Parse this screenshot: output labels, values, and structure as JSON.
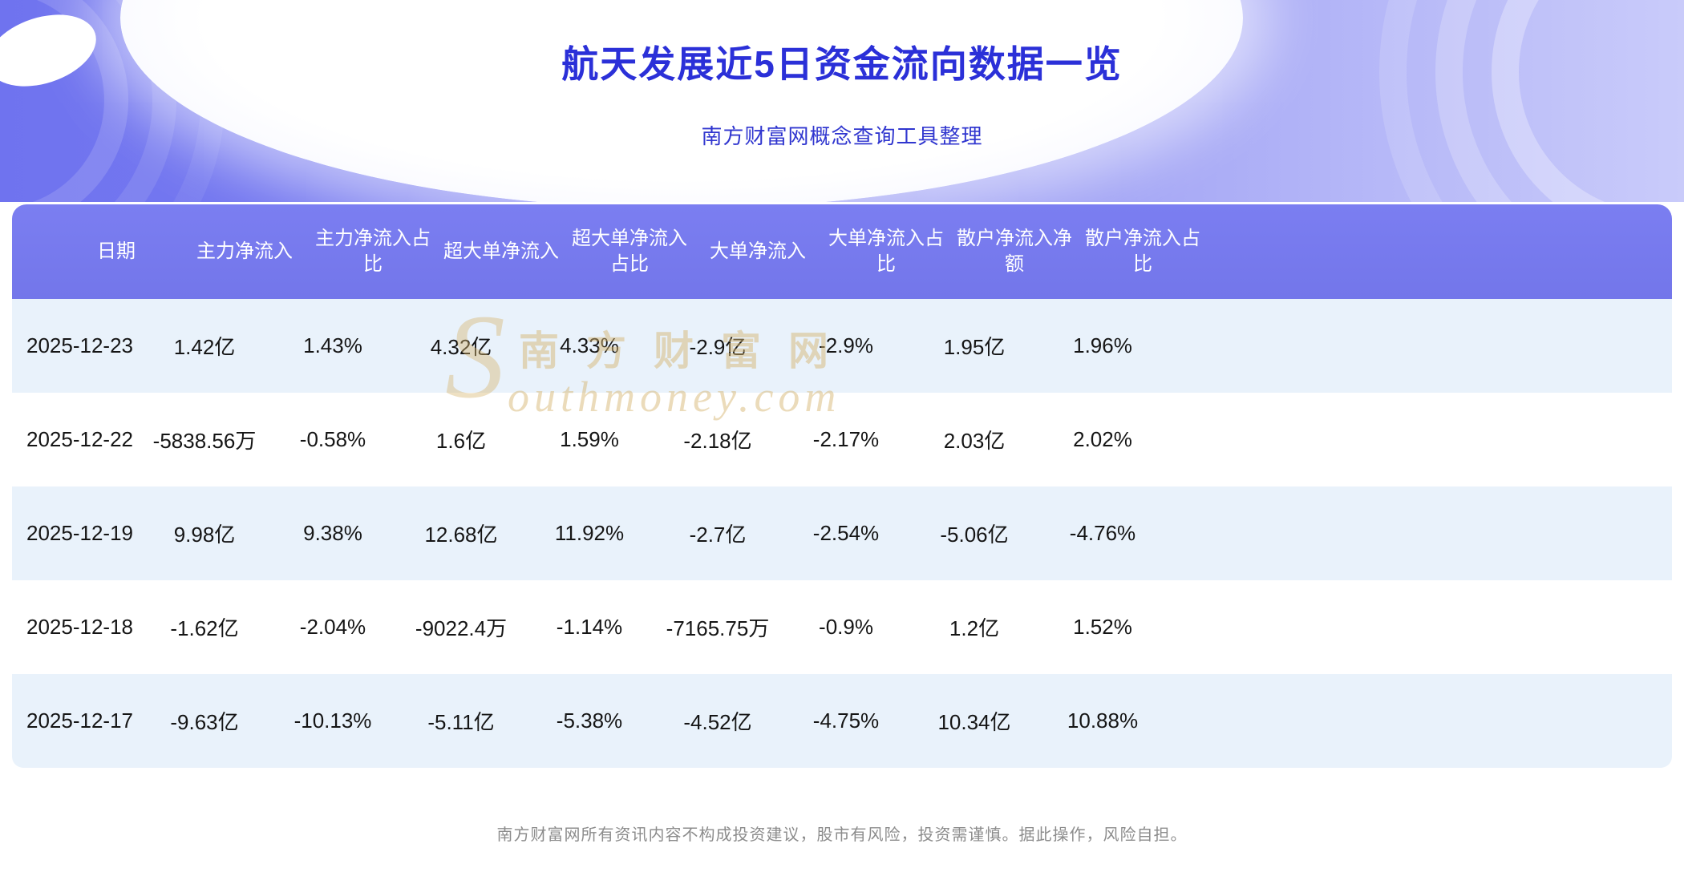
{
  "header": {
    "title": "航天发展近5日资金流向数据一览",
    "subtitle": "南方财富网概念查询工具整理"
  },
  "table": {
    "columns": [
      "日期",
      "主力净流入",
      "主力净流入占比",
      "超大单净流入",
      "超大单净流入占比",
      "大单净流入",
      "大单净流入占比",
      "散户净流入净额",
      "散户净流入占比"
    ],
    "rows": [
      [
        "2025-12-23",
        "1.42亿",
        "1.43%",
        "4.32亿",
        "4.33%",
        "-2.9亿",
        "-2.9%",
        "1.95亿",
        "1.96%"
      ],
      [
        "2025-12-22",
        "-5838.56万",
        "-0.58%",
        "1.6亿",
        "1.59%",
        "-2.18亿",
        "-2.17%",
        "2.03亿",
        "2.02%"
      ],
      [
        "2025-12-19",
        "9.98亿",
        "9.38%",
        "12.68亿",
        "11.92%",
        "-2.7亿",
        "-2.54%",
        "-5.06亿",
        "-4.76%"
      ],
      [
        "2025-12-18",
        "-1.62亿",
        "-2.04%",
        "-9022.4万",
        "-1.14%",
        "-7165.75万",
        "-0.9%",
        "1.2亿",
        "1.52%"
      ],
      [
        "2025-12-17",
        "-9.63亿",
        "-10.13%",
        "-5.11亿",
        "-5.38%",
        "-4.52亿",
        "-4.75%",
        "10.34亿",
        "10.88%"
      ]
    ]
  },
  "watermark": {
    "initial": "S",
    "cn": "南方财富网",
    "en": "outhmoney.com"
  },
  "footer": {
    "disclaimer": "南方财富网所有资讯内容不构成投资建议，股市有风险，投资需谨慎。据此操作，风险自担。"
  },
  "colors": {
    "title_accent": "#2b30d8",
    "table_header_bg": "#7578ec",
    "row_alt_bg": "#e9f2fb",
    "watermark": "#d6b46e"
  }
}
